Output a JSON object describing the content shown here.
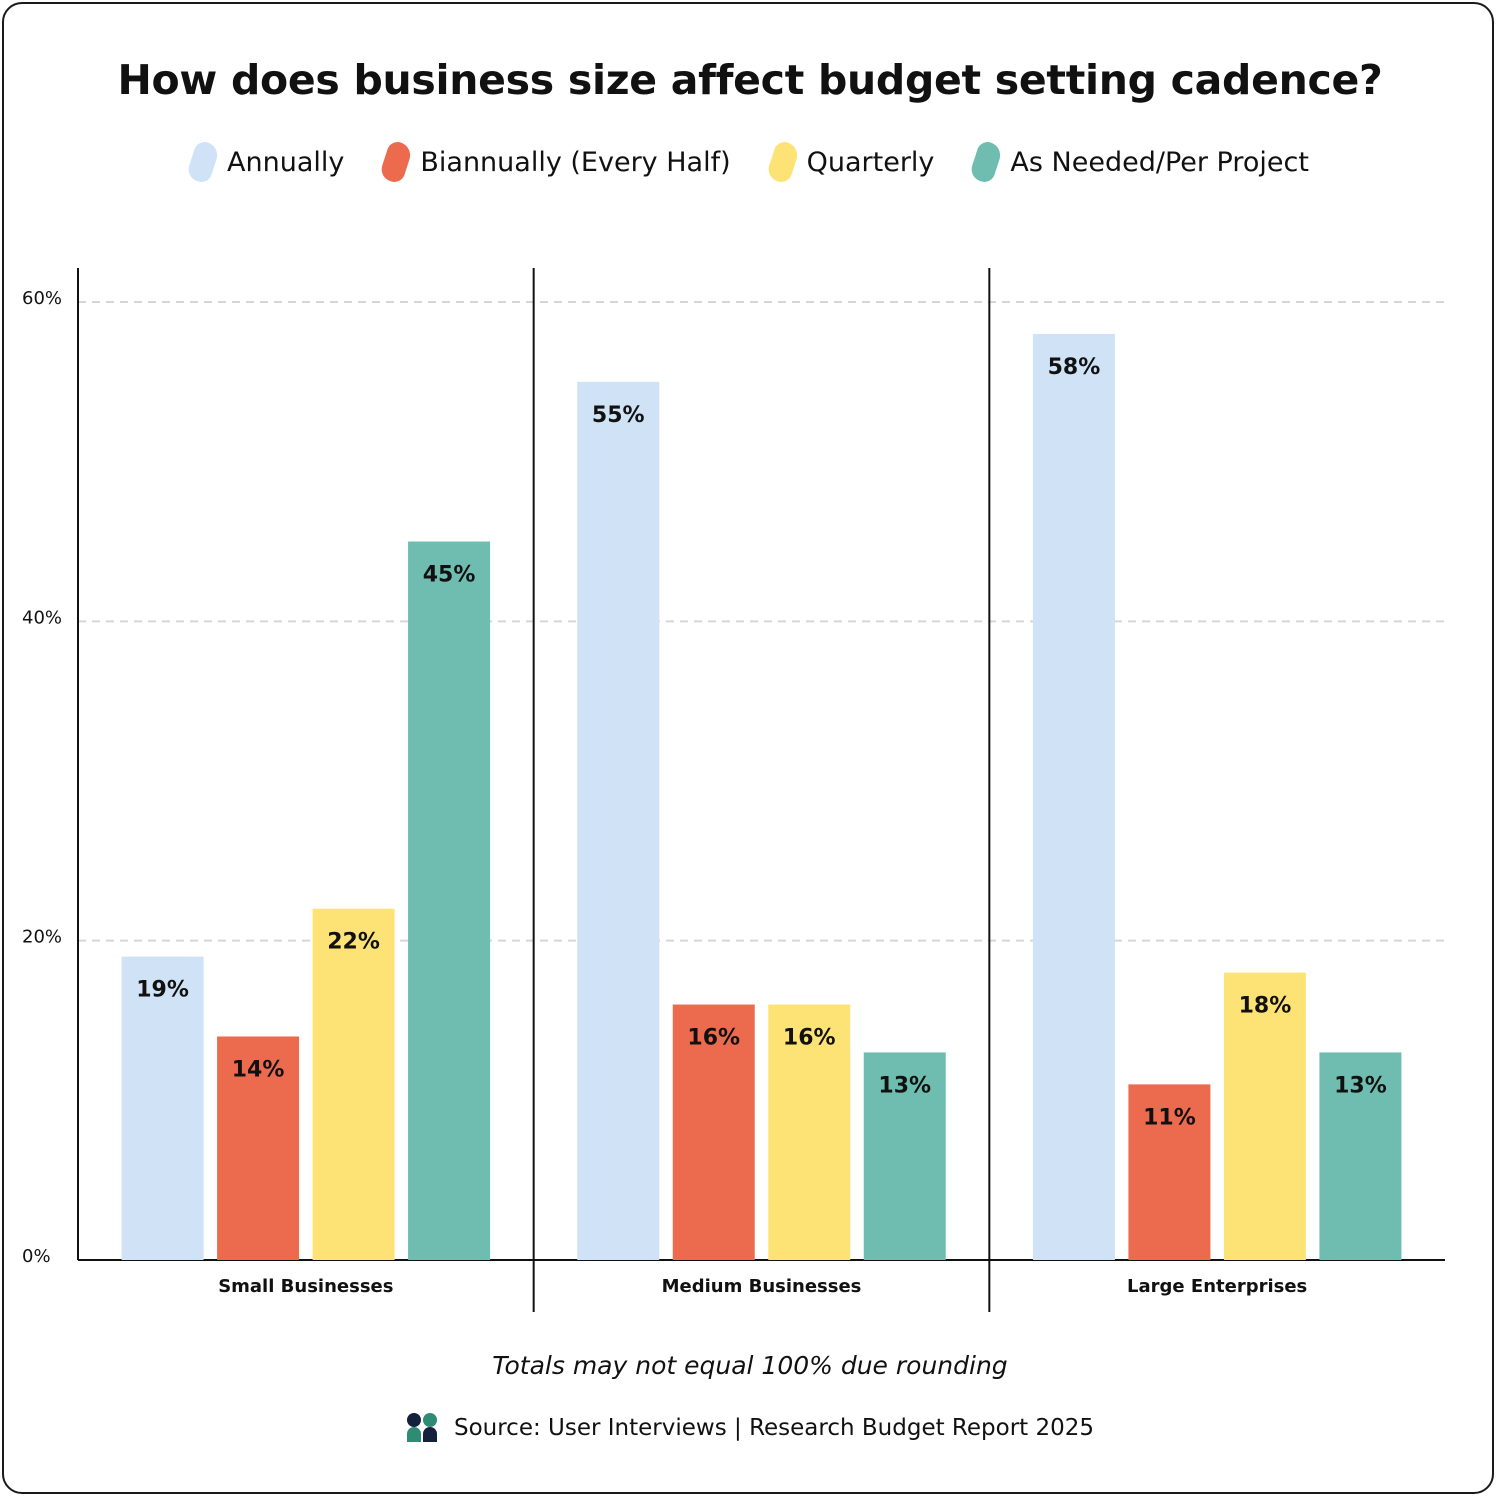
{
  "chart_data": {
    "type": "bar",
    "title": "How does business size affect budget setting cadence?",
    "categories": [
      "Small Businesses",
      "Medium Businesses",
      "Large Enterprises"
    ],
    "series": [
      {
        "name": "Annually",
        "color": "#cfe2f6",
        "values": [
          19,
          55,
          58
        ],
        "labels": [
          "19%",
          "55%",
          "58%"
        ]
      },
      {
        "name": "Biannually (Every Half)",
        "color": "#ec6a4e",
        "values": [
          14,
          16,
          11
        ],
        "labels": [
          "14%",
          "16%",
          "11%"
        ]
      },
      {
        "name": "Quarterly",
        "color": "#fde376",
        "values": [
          22,
          16,
          18
        ],
        "labels": [
          "22%",
          "16%",
          "18%"
        ]
      },
      {
        "name": "As Needed/Per Project",
        "color": "#6fbdb0",
        "values": [
          45,
          13,
          13
        ],
        "labels": [
          "45%",
          "13%",
          "13%"
        ]
      }
    ],
    "ylim": [
      0,
      60
    ],
    "yticks": [
      0,
      20,
      40,
      60
    ],
    "ytick_labels": [
      "0%",
      "20%",
      "40%",
      "60%"
    ],
    "grid": true,
    "legend_position": "top-center"
  },
  "footnote": "Totals may not equal 100% due rounding",
  "source": "Source: User Interviews | Research Budget Report 2025",
  "logo_icon": "user-interviews-logo-icon"
}
